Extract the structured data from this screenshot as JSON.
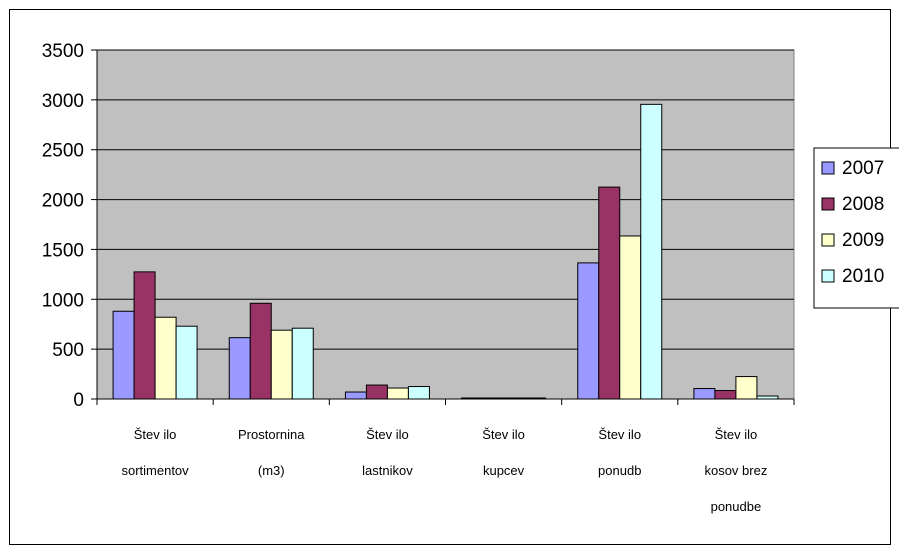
{
  "chart_data": {
    "type": "bar",
    "categories": [
      [
        "Štev ilo",
        "sortimentov"
      ],
      [
        "Prostornina",
        "(m3)"
      ],
      [
        "Štev ilo",
        "lastnikov"
      ],
      [
        "Štev ilo",
        "kupcev"
      ],
      [
        "Štev ilo",
        "ponudb"
      ],
      [
        "Štev ilo",
        "kosov  brez",
        "ponudbe"
      ]
    ],
    "series": [
      {
        "name": "2007",
        "color": "#9999ff",
        "values": [
          880,
          615,
          70,
          10,
          1365,
          105
        ]
      },
      {
        "name": "2008",
        "color": "#993366",
        "values": [
          1275,
          960,
          140,
          10,
          2125,
          85
        ]
      },
      {
        "name": "2009",
        "color": "#ffffcc",
        "values": [
          820,
          690,
          110,
          10,
          1635,
          225
        ]
      },
      {
        "name": "2010",
        "color": "#ccffff",
        "values": [
          730,
          710,
          125,
          10,
          2955,
          30
        ]
      }
    ],
    "ylim": [
      0,
      3500
    ],
    "yticks": [
      0,
      500,
      1000,
      1500,
      2000,
      2500,
      3000,
      3500
    ],
    "grid": true,
    "plot_background": "#c0c0c0",
    "legend_position": "right"
  }
}
